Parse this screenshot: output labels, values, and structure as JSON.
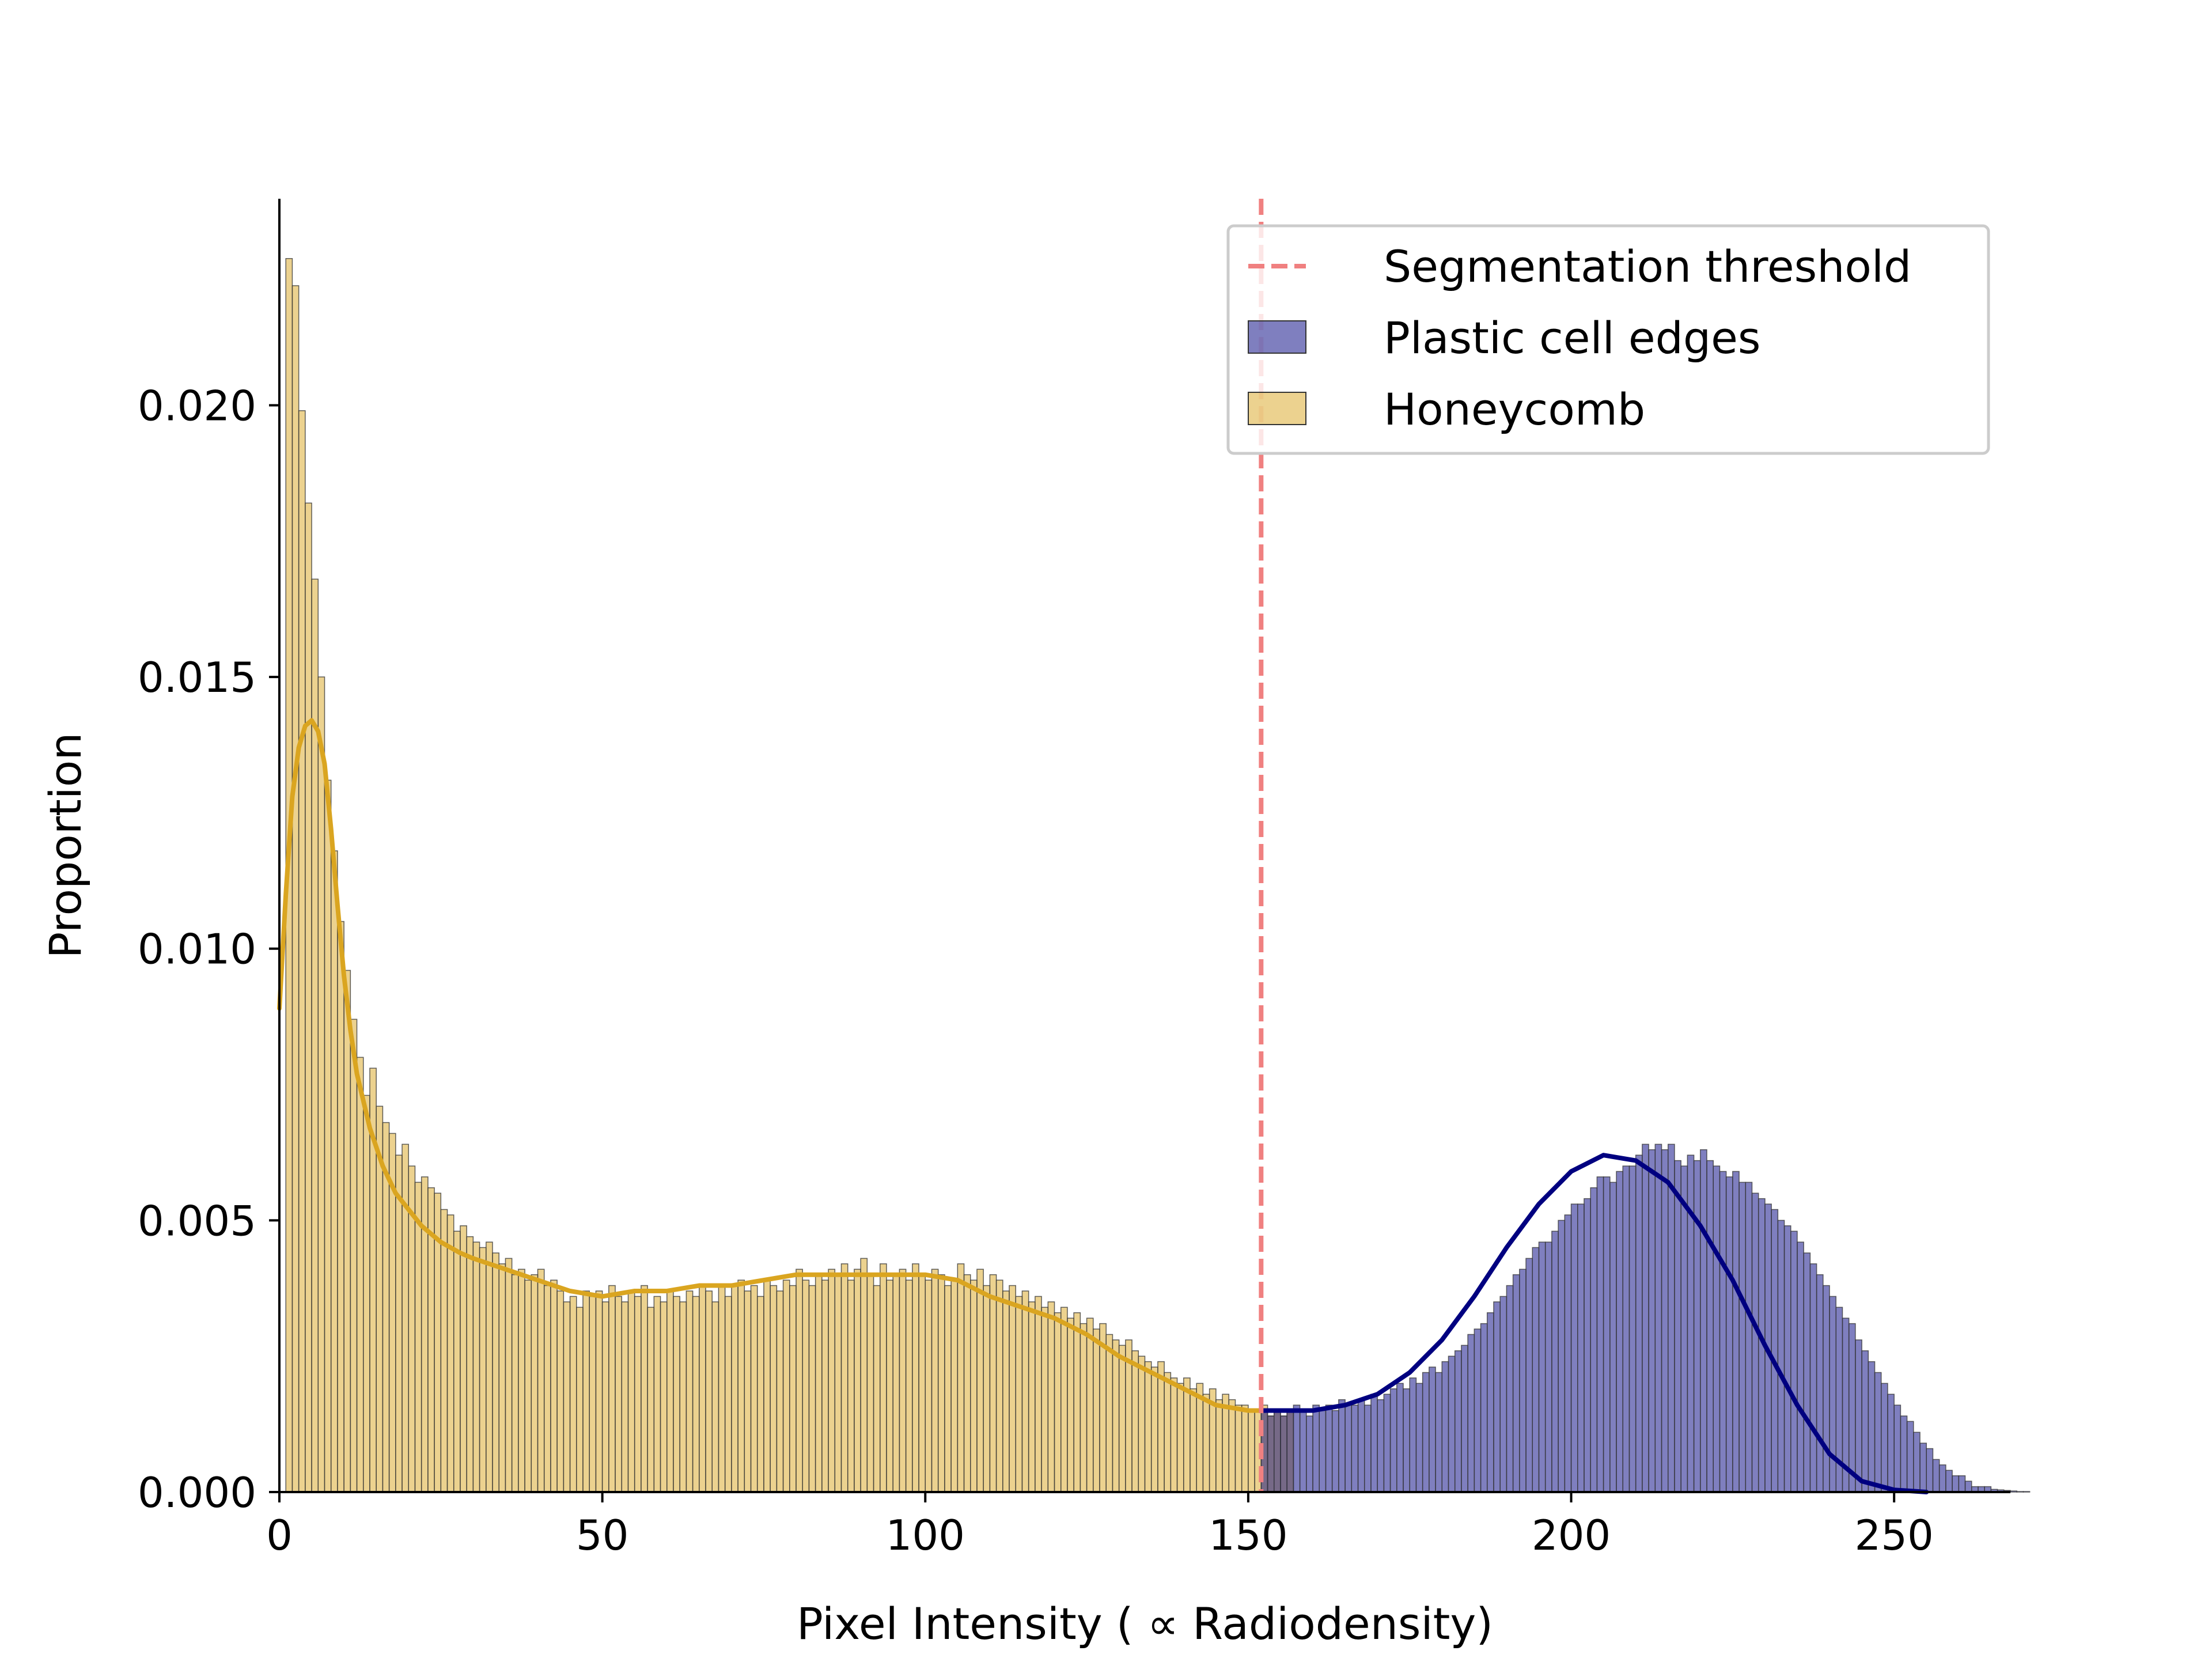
{
  "chart_data": {
    "type": "bar",
    "title": "",
    "xlabel": "Pixel Intensity ( ∝  Radiodensity)",
    "ylabel": "Proportion",
    "xlim": [
      0,
      268
    ],
    "ylim": [
      0,
      0.0238
    ],
    "x_ticks": [
      0,
      50,
      100,
      150,
      200,
      250
    ],
    "x_tick_labels": [
      "0",
      "50",
      "100",
      "150",
      "200",
      "250"
    ],
    "y_ticks": [
      0.0,
      0.005,
      0.01,
      0.015,
      0.02
    ],
    "y_tick_labels": [
      "0.000",
      "0.005",
      "0.010",
      "0.015",
      "0.020"
    ],
    "grid": false,
    "legend_position": "top-right",
    "bin_width": 1,
    "threshold": {
      "name": "Segmentation threshold",
      "x": 152,
      "color": "#f08080"
    },
    "series": [
      {
        "name": "Honeycomb",
        "color": "#daa520",
        "x_start": 1,
        "values": [
          0.0227,
          0.0222,
          0.0199,
          0.0182,
          0.0168,
          0.015,
          0.0131,
          0.0118,
          0.0105,
          0.0096,
          0.0087,
          0.008,
          0.0073,
          0.0078,
          0.0071,
          0.0068,
          0.0066,
          0.0062,
          0.0064,
          0.006,
          0.0057,
          0.0058,
          0.0056,
          0.0055,
          0.0052,
          0.0051,
          0.0048,
          0.0049,
          0.0047,
          0.0046,
          0.0045,
          0.0046,
          0.0044,
          0.0042,
          0.0043,
          0.004,
          0.0041,
          0.0039,
          0.004,
          0.0041,
          0.0038,
          0.0039,
          0.0037,
          0.0035,
          0.0036,
          0.0034,
          0.0037,
          0.0036,
          0.0037,
          0.0035,
          0.0038,
          0.0036,
          0.0035,
          0.0037,
          0.0036,
          0.0038,
          0.0034,
          0.0036,
          0.0035,
          0.0037,
          0.0036,
          0.0035,
          0.0037,
          0.0036,
          0.0038,
          0.0037,
          0.0035,
          0.0038,
          0.0036,
          0.0038,
          0.0039,
          0.0037,
          0.0038,
          0.0036,
          0.0039,
          0.0038,
          0.0037,
          0.0039,
          0.0038,
          0.0041,
          0.0039,
          0.0038,
          0.004,
          0.0039,
          0.0041,
          0.004,
          0.0042,
          0.0039,
          0.0041,
          0.0043,
          0.004,
          0.0038,
          0.0042,
          0.0039,
          0.004,
          0.0041,
          0.0039,
          0.0042,
          0.004,
          0.0039,
          0.0041,
          0.004,
          0.0038,
          0.0039,
          0.0042,
          0.004,
          0.0039,
          0.0041,
          0.0038,
          0.004,
          0.0039,
          0.0037,
          0.0038,
          0.0036,
          0.0037,
          0.0035,
          0.0036,
          0.0034,
          0.0035,
          0.0033,
          0.0034,
          0.0032,
          0.0033,
          0.0031,
          0.0032,
          0.003,
          0.0031,
          0.0029,
          0.0028,
          0.0027,
          0.0028,
          0.0026,
          0.0025,
          0.0024,
          0.0023,
          0.0024,
          0.0022,
          0.0021,
          0.002,
          0.0021,
          0.0019,
          0.002,
          0.0018,
          0.0019,
          0.0017,
          0.0018,
          0.0017,
          0.0016,
          0.0016,
          0.0015,
          0.0015,
          0.0016,
          0.0014,
          0.0015,
          0.0014,
          0.0015
        ]
      },
      {
        "name": "Plastic cell edges",
        "color": "#000080",
        "x_start": 152,
        "values": [
          0.0015,
          0.0014,
          0.0015,
          0.0014,
          0.0015,
          0.0016,
          0.0015,
          0.0014,
          0.0016,
          0.0015,
          0.0016,
          0.0015,
          0.0017,
          0.0016,
          0.0016,
          0.0017,
          0.0016,
          0.0018,
          0.0017,
          0.0018,
          0.0019,
          0.002,
          0.0019,
          0.0021,
          0.002,
          0.0022,
          0.0023,
          0.0022,
          0.0024,
          0.0025,
          0.0026,
          0.0027,
          0.0029,
          0.003,
          0.0031,
          0.0033,
          0.0035,
          0.0036,
          0.0038,
          0.004,
          0.0041,
          0.0043,
          0.0045,
          0.0046,
          0.0046,
          0.0048,
          0.005,
          0.0051,
          0.0053,
          0.0053,
          0.0054,
          0.0056,
          0.0058,
          0.0058,
          0.0057,
          0.0059,
          0.006,
          0.006,
          0.0062,
          0.0064,
          0.0063,
          0.0064,
          0.0063,
          0.0064,
          0.0061,
          0.006,
          0.0062,
          0.0061,
          0.0063,
          0.0061,
          0.006,
          0.0059,
          0.0058,
          0.0059,
          0.0057,
          0.0057,
          0.0055,
          0.0054,
          0.0053,
          0.0052,
          0.005,
          0.0049,
          0.0048,
          0.0046,
          0.0044,
          0.0042,
          0.004,
          0.0038,
          0.0036,
          0.0034,
          0.0032,
          0.0031,
          0.0028,
          0.0026,
          0.0024,
          0.0022,
          0.002,
          0.0018,
          0.0016,
          0.0014,
          0.0013,
          0.0011,
          0.0009,
          0.0008,
          0.0006,
          0.0005,
          0.0004,
          0.0003,
          0.0003,
          0.0002,
          0.0001,
          0.0001,
          0.0001,
          5e-05,
          4e-05,
          3e-05,
          2e-05,
          1e-05,
          1e-05,
          0.0,
          0.0,
          0.0,
          0.0,
          0.0
        ]
      }
    ],
    "kde": [
      {
        "series": "Honeycomb",
        "color": "#daa520",
        "x": [
          0,
          1,
          2,
          3,
          4,
          5,
          6,
          7,
          8,
          9,
          10,
          11,
          12,
          14,
          16,
          18,
          20,
          22,
          25,
          28,
          30,
          35,
          40,
          45,
          50,
          55,
          60,
          65,
          70,
          75,
          80,
          85,
          90,
          95,
          100,
          105,
          110,
          115,
          120,
          125,
          130,
          135,
          140,
          145,
          150,
          152
        ],
        "y": [
          0.0089,
          0.011,
          0.0128,
          0.0137,
          0.0141,
          0.0142,
          0.014,
          0.0134,
          0.0122,
          0.0108,
          0.0095,
          0.0085,
          0.0077,
          0.0067,
          0.006,
          0.0055,
          0.0052,
          0.0049,
          0.0046,
          0.0044,
          0.0043,
          0.0041,
          0.0039,
          0.0037,
          0.0036,
          0.0037,
          0.0037,
          0.0038,
          0.0038,
          0.0039,
          0.004,
          0.004,
          0.004,
          0.004,
          0.004,
          0.0039,
          0.0036,
          0.0034,
          0.0032,
          0.0029,
          0.0025,
          0.0022,
          0.0019,
          0.0016,
          0.0015,
          0.0015
        ]
      },
      {
        "series": "Plastic cell edges",
        "color": "#000080",
        "x": [
          152,
          155,
          160,
          165,
          170,
          175,
          180,
          185,
          190,
          195,
          200,
          205,
          210,
          215,
          220,
          225,
          230,
          235,
          240,
          245,
          250,
          255
        ],
        "y": [
          0.0015,
          0.0015,
          0.0015,
          0.0016,
          0.0018,
          0.0022,
          0.0028,
          0.0036,
          0.0045,
          0.0053,
          0.0059,
          0.0062,
          0.0061,
          0.0057,
          0.0049,
          0.0039,
          0.0027,
          0.0016,
          0.0007,
          0.0002,
          4e-05,
          0.0
        ]
      }
    ]
  }
}
